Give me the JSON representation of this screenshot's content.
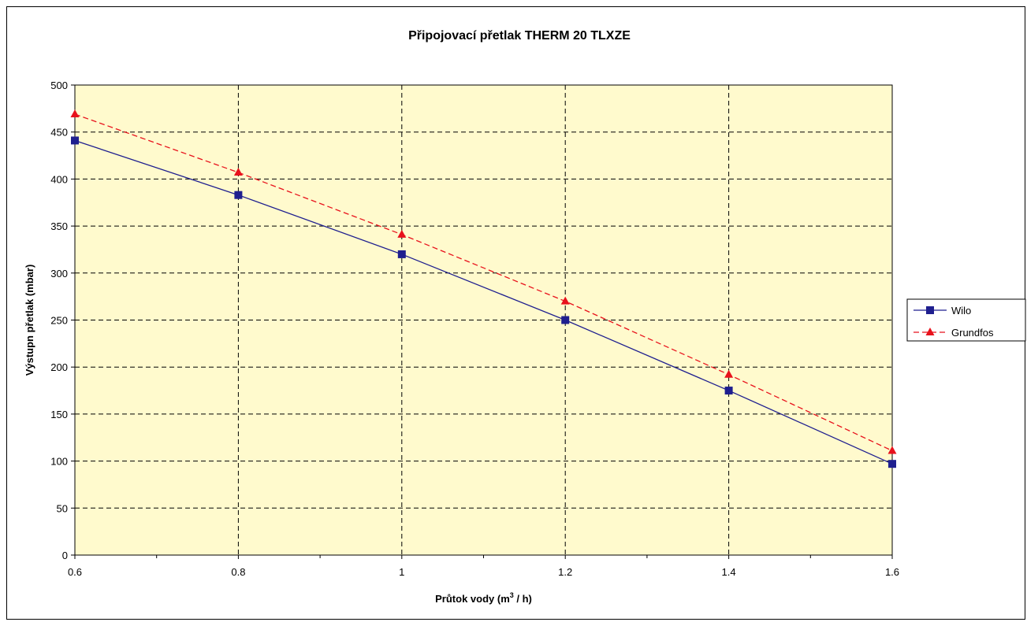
{
  "chart_data": {
    "type": "line",
    "title": "Připojovací přetlak THERM 20 TLXZE",
    "xlabel": "Průtok vody (m",
    "xlabel_sup": "3",
    "xlabel_suffix": " / h)",
    "ylabel": "Výstupn přetlak (mbar)",
    "x": [
      0.6,
      0.8,
      1.0,
      1.2,
      1.4,
      1.6
    ],
    "x_tick_labels": [
      "0.6",
      "0.8",
      "1",
      "1.2",
      "1.4",
      "1.6"
    ],
    "xlim": [
      0.6,
      1.6
    ],
    "ylim": [
      0,
      500
    ],
    "y_ticks": [
      0,
      50,
      100,
      150,
      200,
      250,
      300,
      350,
      400,
      450,
      500
    ],
    "grid": true,
    "plot_background": "#FFFACD",
    "legend_position": "right",
    "series": [
      {
        "name": "Wilo",
        "values": [
          441,
          383,
          320,
          250,
          175,
          97
        ],
        "color": "#1F1F8F",
        "marker": "square",
        "line_style": "solid"
      },
      {
        "name": "Grundfos",
        "values": [
          469,
          407,
          341,
          270,
          192,
          111
        ],
        "color": "#E8121C",
        "marker": "triangle",
        "line_style": "dashed"
      }
    ]
  }
}
